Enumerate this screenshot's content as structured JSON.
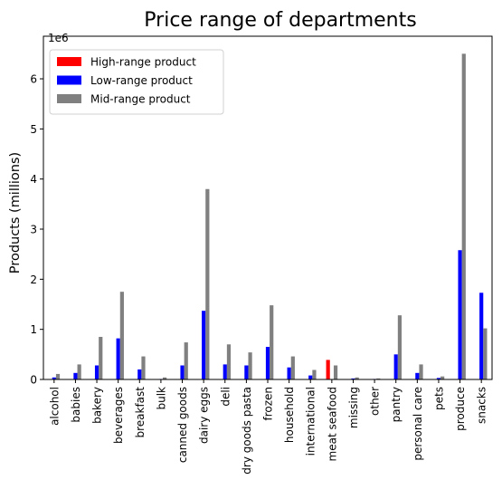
{
  "chart_data": {
    "type": "bar",
    "title": "Price range of departments",
    "ylabel": "Products (millions)",
    "xlabel": "",
    "offset_label": "1e6",
    "ylim": [
      0,
      6.85
    ],
    "yticks": [
      0,
      1,
      2,
      3,
      4,
      5,
      6
    ],
    "grid": false,
    "legend_position": "upper-left",
    "categories": [
      "alcohol",
      "babies",
      "bakery",
      "beverages",
      "breakfast",
      "bulk",
      "canned goods",
      "dairy eggs",
      "deli",
      "dry goods pasta",
      "frozen",
      "household",
      "international",
      "meat seafood",
      "missing",
      "other",
      "pantry",
      "personal care",
      "pets",
      "produce",
      "snacks"
    ],
    "series": [
      {
        "name": "High-range product",
        "color": "#ff0000",
        "values": [
          0,
          0,
          0,
          0,
          0,
          0,
          0,
          0,
          0,
          0,
          0,
          0,
          0,
          0.39,
          0,
          0,
          0,
          0,
          0,
          0,
          0
        ]
      },
      {
        "name": "Low-range product",
        "color": "#0000ff",
        "values": [
          0.04,
          0.13,
          0.28,
          0.82,
          0.2,
          0.01,
          0.28,
          1.37,
          0.3,
          0.28,
          0.65,
          0.24,
          0.08,
          0,
          0.02,
          0.01,
          0.5,
          0.13,
          0.03,
          2.58,
          1.73
        ]
      },
      {
        "name": "Mid-range product",
        "color": "#808080",
        "values": [
          0.11,
          0.3,
          0.85,
          1.75,
          0.46,
          0.04,
          0.74,
          3.8,
          0.7,
          0.54,
          1.48,
          0.46,
          0.19,
          0.28,
          0.04,
          0.02,
          1.28,
          0.3,
          0.06,
          6.5,
          1.02
        ]
      }
    ]
  }
}
